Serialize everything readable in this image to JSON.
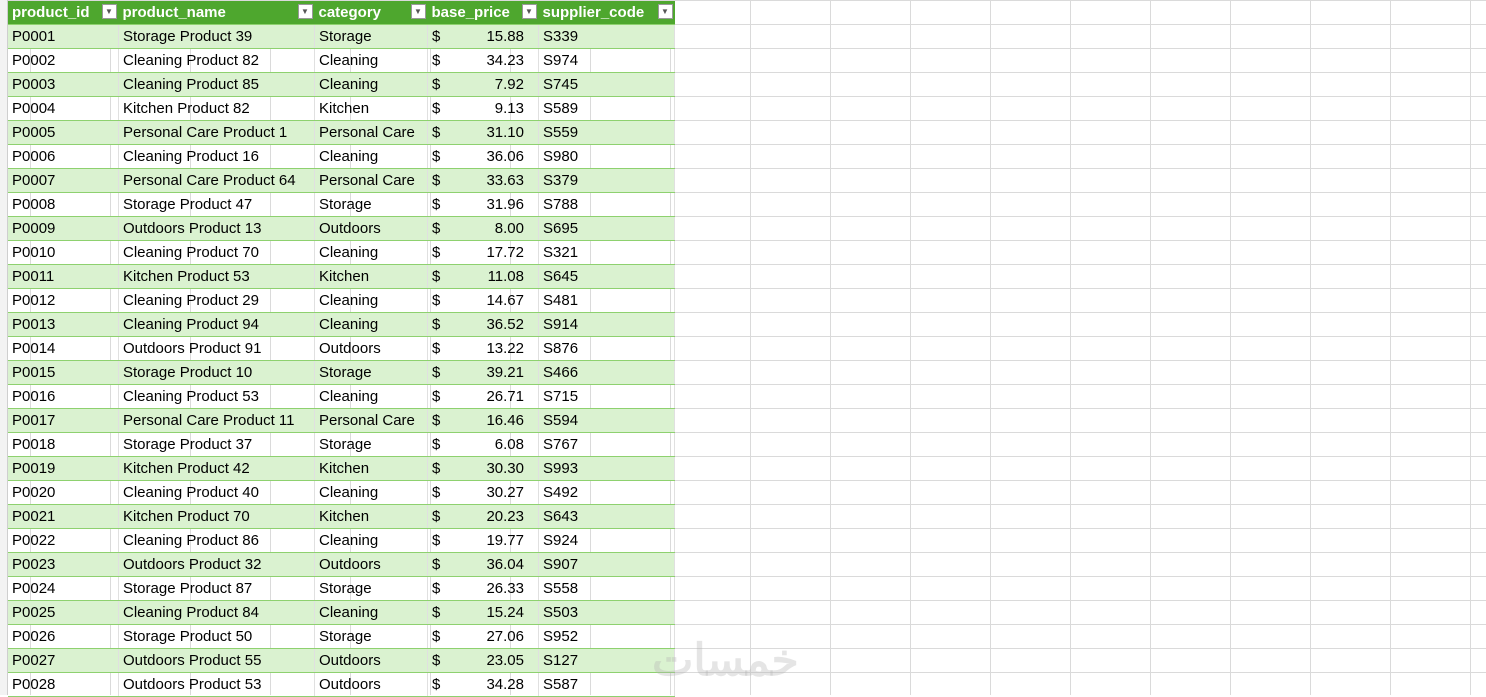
{
  "columns": [
    "product_id",
    "product_name",
    "category",
    "base_price",
    "supplier_code"
  ],
  "currency": "$",
  "filter_icon": "dropdown-arrow-icon",
  "header_color": "#4ea72e",
  "band_color": "#daf2d0",
  "watermark": "خمسات",
  "rows": [
    [
      "P0001",
      "Storage Product 39",
      "Storage",
      "15.88",
      "S339"
    ],
    [
      "P0002",
      "Cleaning Product 82",
      "Cleaning",
      "34.23",
      "S974"
    ],
    [
      "P0003",
      "Cleaning Product 85",
      "Cleaning",
      "7.92",
      "S745"
    ],
    [
      "P0004",
      "Kitchen Product 82",
      "Kitchen",
      "9.13",
      "S589"
    ],
    [
      "P0005",
      "Personal Care Product 1",
      "Personal Care",
      "31.10",
      "S559"
    ],
    [
      "P0006",
      "Cleaning Product 16",
      "Cleaning",
      "36.06",
      "S980"
    ],
    [
      "P0007",
      "Personal Care Product 64",
      "Personal Care",
      "33.63",
      "S379"
    ],
    [
      "P0008",
      "Storage Product 47",
      "Storage",
      "31.96",
      "S788"
    ],
    [
      "P0009",
      "Outdoors Product 13",
      "Outdoors",
      "8.00",
      "S695"
    ],
    [
      "P0010",
      "Cleaning Product 70",
      "Cleaning",
      "17.72",
      "S321"
    ],
    [
      "P0011",
      "Kitchen Product 53",
      "Kitchen",
      "11.08",
      "S645"
    ],
    [
      "P0012",
      "Cleaning Product 29",
      "Cleaning",
      "14.67",
      "S481"
    ],
    [
      "P0013",
      "Cleaning Product 94",
      "Cleaning",
      "36.52",
      "S914"
    ],
    [
      "P0014",
      "Outdoors Product 91",
      "Outdoors",
      "13.22",
      "S876"
    ],
    [
      "P0015",
      "Storage Product 10",
      "Storage",
      "39.21",
      "S466"
    ],
    [
      "P0016",
      "Cleaning Product 53",
      "Cleaning",
      "26.71",
      "S715"
    ],
    [
      "P0017",
      "Personal Care Product 11",
      "Personal Care",
      "16.46",
      "S594"
    ],
    [
      "P0018",
      "Storage Product 37",
      "Storage",
      "6.08",
      "S767"
    ],
    [
      "P0019",
      "Kitchen Product 42",
      "Kitchen",
      "30.30",
      "S993"
    ],
    [
      "P0020",
      "Cleaning Product 40",
      "Cleaning",
      "30.27",
      "S492"
    ],
    [
      "P0021",
      "Kitchen Product 70",
      "Kitchen",
      "20.23",
      "S643"
    ],
    [
      "P0022",
      "Cleaning Product 86",
      "Cleaning",
      "19.77",
      "S924"
    ],
    [
      "P0023",
      "Outdoors Product 32",
      "Outdoors",
      "36.04",
      "S907"
    ],
    [
      "P0024",
      "Storage Product 87",
      "Storage",
      "26.33",
      "S558"
    ],
    [
      "P0025",
      "Cleaning Product 84",
      "Cleaning",
      "15.24",
      "S503"
    ],
    [
      "P0026",
      "Storage Product 50",
      "Storage",
      "27.06",
      "S952"
    ],
    [
      "P0027",
      "Outdoors Product 55",
      "Outdoors",
      "23.05",
      "S127"
    ],
    [
      "P0028",
      "Outdoors Product 53",
      "Outdoors",
      "34.28",
      "S587"
    ]
  ]
}
